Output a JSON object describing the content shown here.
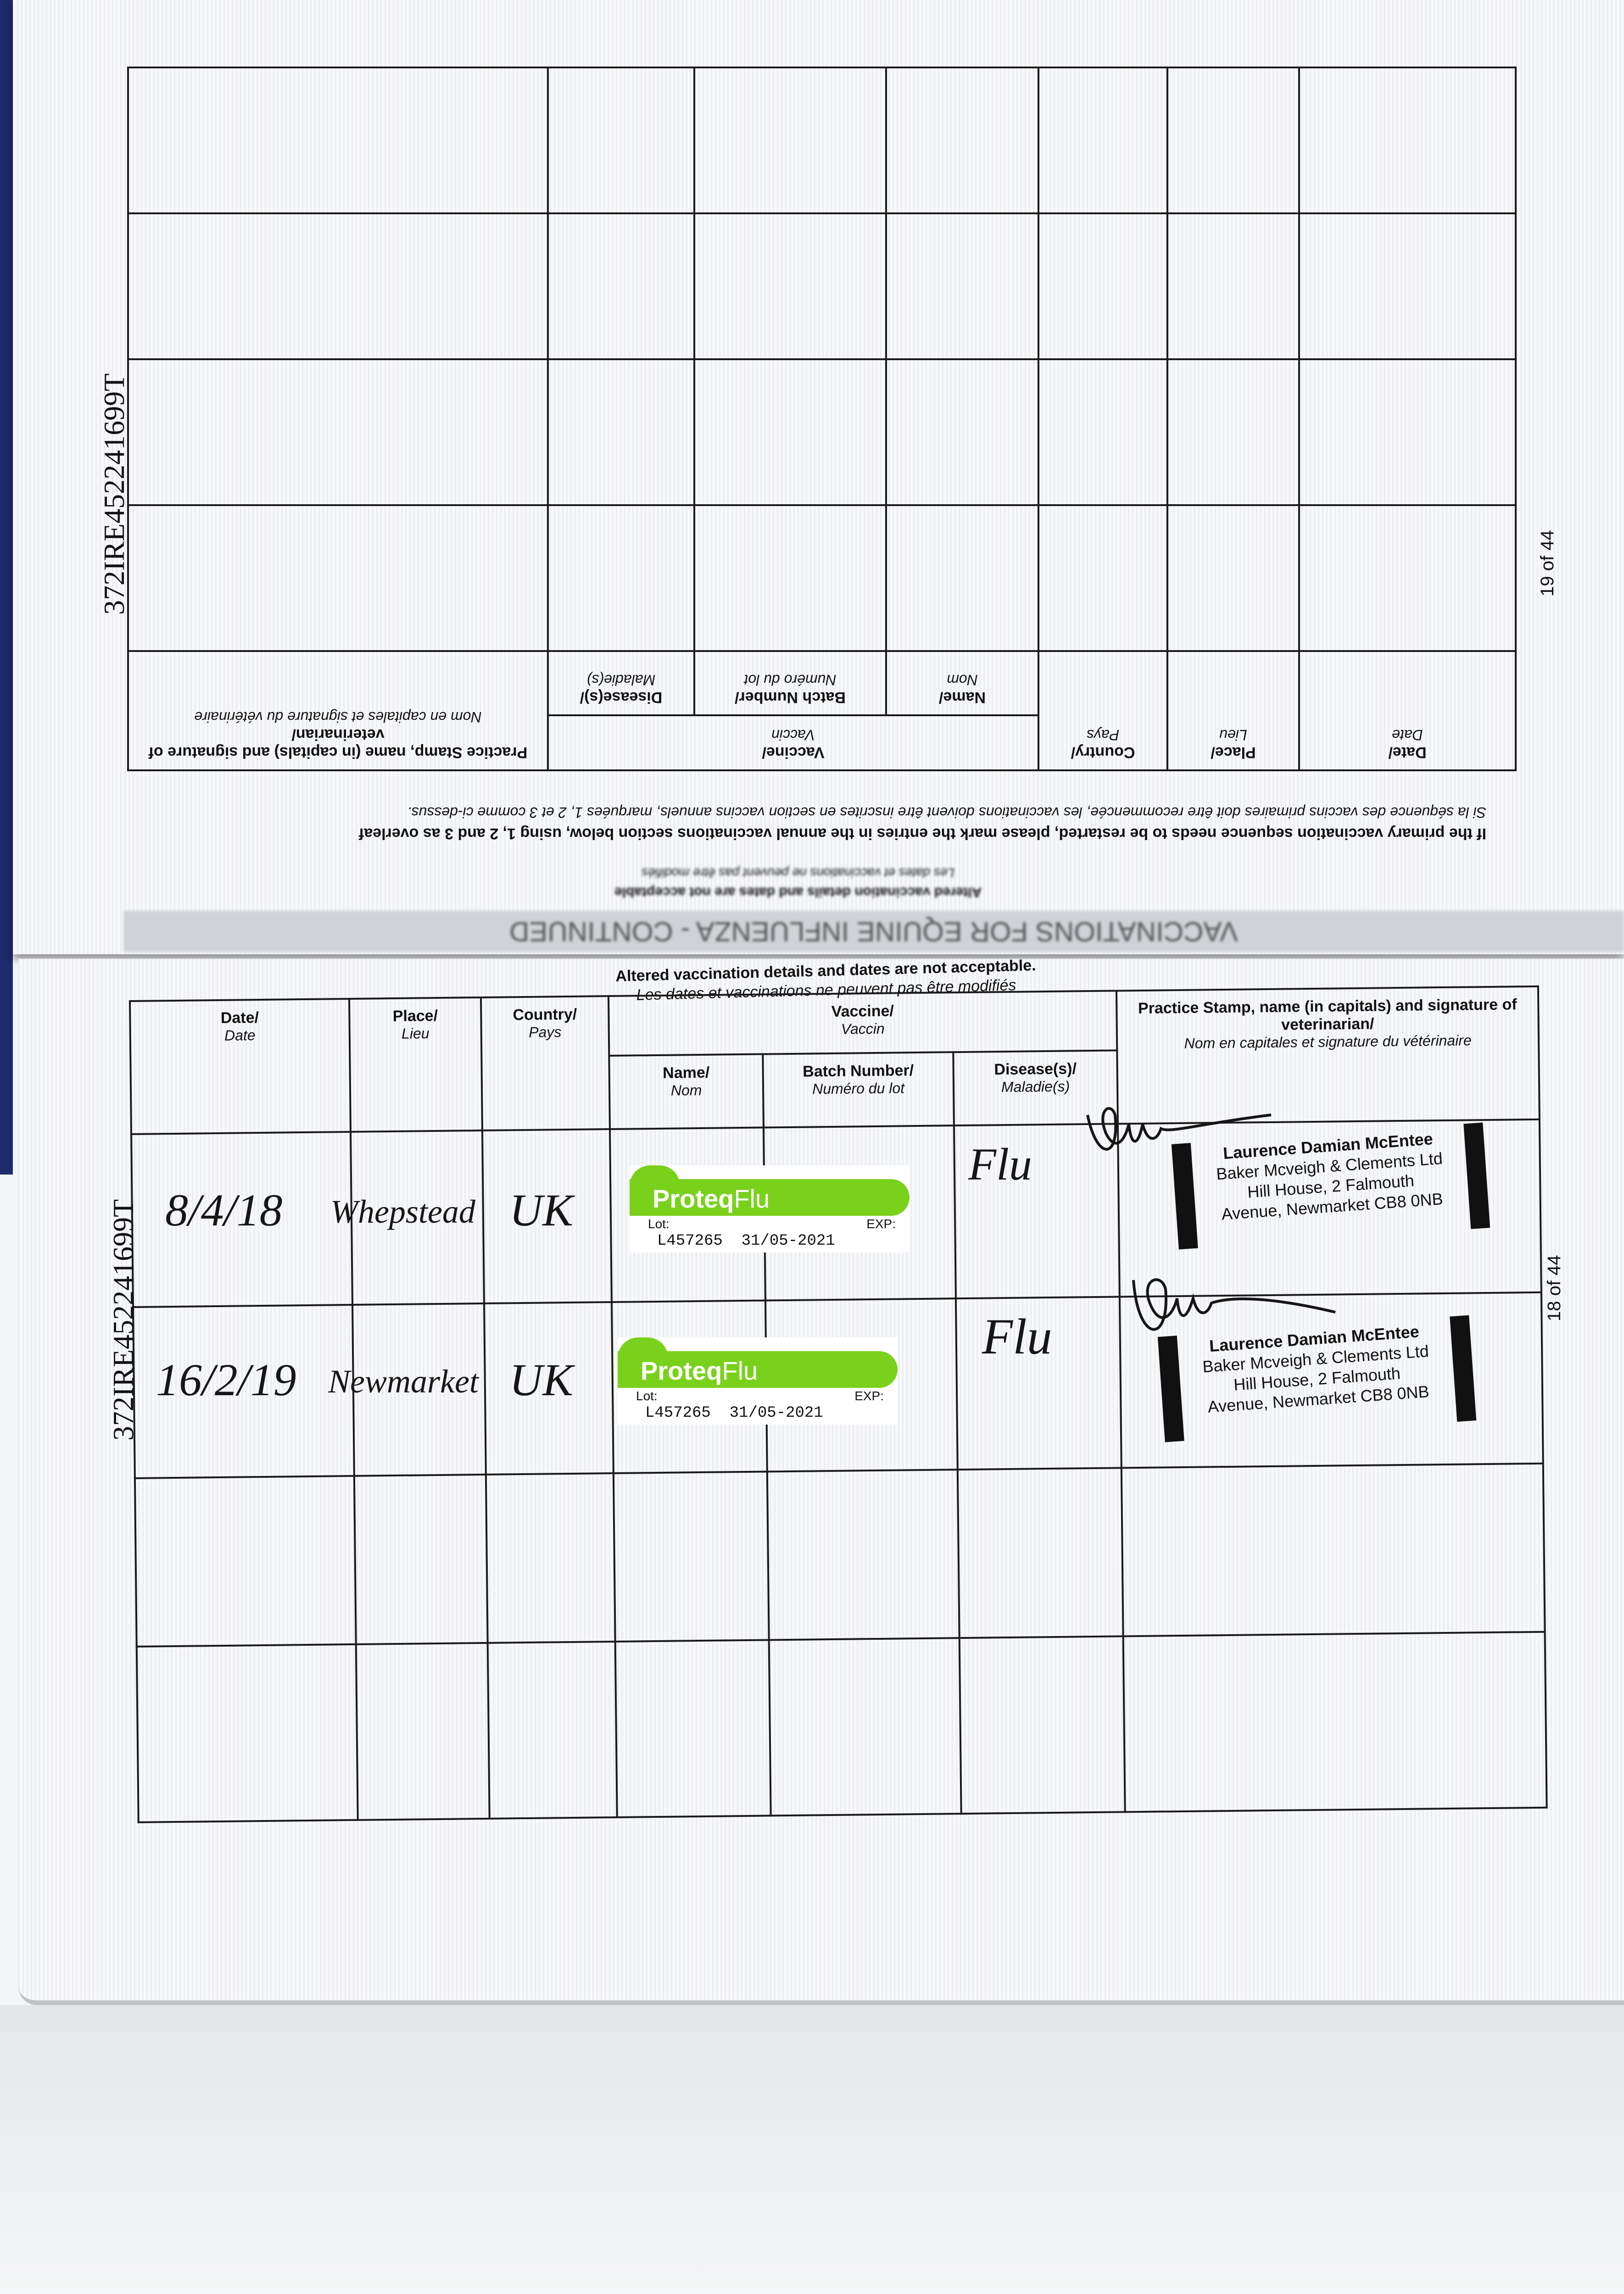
{
  "passport_id": "372IRE452241699T",
  "top_page": {
    "page_number": "19 of 44",
    "banner": "VACCINATIONS FOR EQUINE INFLUENZA - CONTINUED",
    "notice_en": "Altered vaccination details and dates are not acceptable",
    "notice_fr": "Les dates et vaccinations ne peuvent pas être modifiés",
    "instruction_en": "If the primary vaccination sequence needs to be restarted, please mark the entries in the annual vaccinations section below, using 1, 2 and 3 as overleaf",
    "instruction_fr": "Si la séquence des vaccins primaires doit être recommencée, les vaccinations doivent être inscrites en section vaccins annuels, marquées 1, 2 et 3 comme ci-dessus."
  },
  "bottom_page": {
    "page_number": "18 of 44",
    "notice_en": "Altered vaccination details and dates are not acceptable.",
    "notice_fr": "Les dates et vaccinations ne peuvent pas être modifiés"
  },
  "headers": {
    "date": {
      "en": "Date/",
      "fr": "Date"
    },
    "place": {
      "en": "Place/",
      "fr": "Lieu"
    },
    "country": {
      "en": "Country/",
      "fr": "Pays"
    },
    "vaccine": {
      "en": "Vaccine/",
      "fr": "Vaccin"
    },
    "name": {
      "en": "Name/",
      "fr": "Nom"
    },
    "batch": {
      "en": "Batch Number/",
      "fr": "Numéro du lot"
    },
    "disease": {
      "en": "Disease(s)/",
      "fr": "Maladie(s)"
    },
    "practice": {
      "en": "Practice Stamp, name (in capitals) and signature of veterinarian/",
      "fr": "Nom en capitales et signature du vétérinaire"
    }
  },
  "entries": [
    {
      "date": "8/4/18",
      "place": "Whepstead",
      "country": "UK",
      "disease": "Flu",
      "sticker": {
        "brand": "Proteq",
        "brand_suffix": "Flu",
        "lot_label": "Lot:",
        "exp_label": "EXP:",
        "lot": "L457265",
        "exp": "31/05-2021"
      },
      "stamp": [
        "Laurence Damian McEntee",
        "Baker Mcveigh & Clements Ltd",
        "Hill House, 2 Falmouth",
        "Avenue, Newmarket CB8 0NB"
      ]
    },
    {
      "date": "16/2/19",
      "place": "Newmarket",
      "country": "UK",
      "disease": "Flu",
      "sticker": {
        "brand": "Proteq",
        "brand_suffix": "Flu",
        "lot_label": "Lot:",
        "exp_label": "EXP:",
        "lot": "L457265",
        "exp": "31/05-2021"
      },
      "stamp": [
        "Laurence Damian McEntee",
        "Baker Mcveigh & Clements Ltd",
        "Hill House, 2 Falmouth",
        "Avenue, Newmarket CB8 0NB"
      ]
    }
  ],
  "colors": {
    "sticker_green": "#7ad11c",
    "ink": "#161616"
  }
}
